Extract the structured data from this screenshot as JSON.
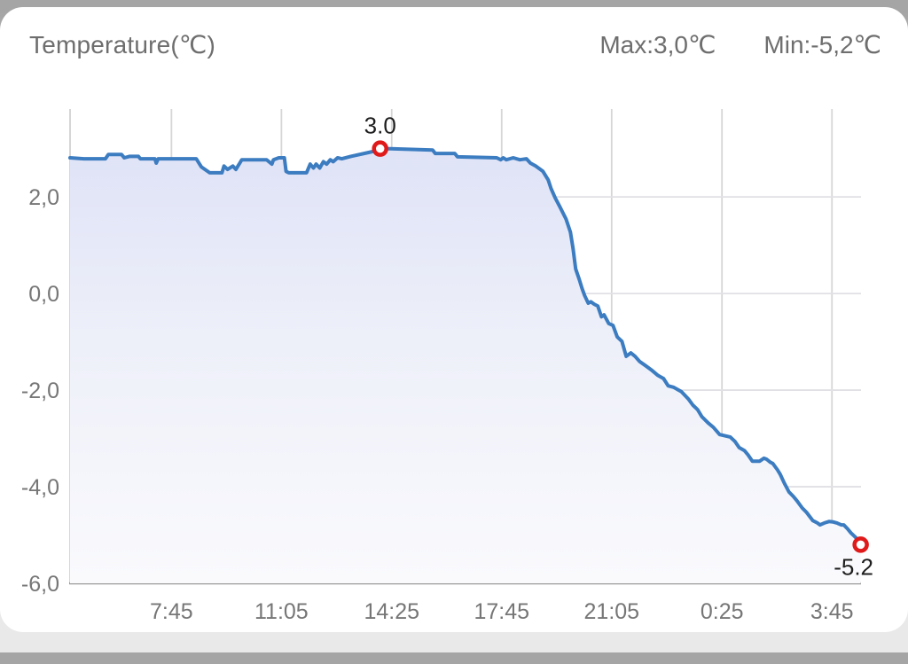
{
  "header": {
    "title": "Temperature(℃)",
    "max_label": "Max:3,0℃",
    "min_label": "Min:-5,2℃"
  },
  "chart_data": {
    "type": "area",
    "title": "Temperature(℃)",
    "xlabel": "",
    "ylabel": "Temperature (°C)",
    "grid": true,
    "legend": "none",
    "x_axis": {
      "range": [
        4.68,
        28.63
      ],
      "unit": "time of day (hours, wraps past midnight)",
      "ticks": [
        {
          "t": 7.75,
          "label": "7:45"
        },
        {
          "t": 11.08,
          "label": "11:05"
        },
        {
          "t": 14.42,
          "label": "14:25"
        },
        {
          "t": 17.75,
          "label": "17:45"
        },
        {
          "t": 21.08,
          "label": "21:05"
        },
        {
          "t": 24.42,
          "label": "0:25"
        },
        {
          "t": 27.75,
          "label": "3:45"
        }
      ]
    },
    "y_axis": {
      "range": [
        -6,
        3.82
      ],
      "ticks": [
        {
          "v": 2,
          "label": "2,0"
        },
        {
          "v": 0,
          "label": "0,0"
        },
        {
          "v": -2,
          "label": "-2,0"
        },
        {
          "v": -4,
          "label": "-4,0"
        },
        {
          "v": -6,
          "label": "-6,0"
        }
      ]
    },
    "series": {
      "name": "temperature",
      "points": [
        [
          4.68,
          2.81
        ],
        [
          5.1,
          2.79
        ],
        [
          5.75,
          2.79
        ],
        [
          5.84,
          2.88
        ],
        [
          6.24,
          2.88
        ],
        [
          6.32,
          2.81
        ],
        [
          6.48,
          2.84
        ],
        [
          6.75,
          2.84
        ],
        [
          6.81,
          2.79
        ],
        [
          7.25,
          2.79
        ],
        [
          7.29,
          2.7
        ],
        [
          7.35,
          2.79
        ],
        [
          8.5,
          2.79
        ],
        [
          8.66,
          2.62
        ],
        [
          8.91,
          2.5
        ],
        [
          9.28,
          2.5
        ],
        [
          9.34,
          2.64
        ],
        [
          9.45,
          2.57
        ],
        [
          9.61,
          2.64
        ],
        [
          9.7,
          2.57
        ],
        [
          9.82,
          2.7
        ],
        [
          9.88,
          2.77
        ],
        [
          10.63,
          2.77
        ],
        [
          10.79,
          2.68
        ],
        [
          10.84,
          2.77
        ],
        [
          11.0,
          2.81
        ],
        [
          11.17,
          2.81
        ],
        [
          11.22,
          2.53
        ],
        [
          11.3,
          2.5
        ],
        [
          11.84,
          2.5
        ],
        [
          11.95,
          2.68
        ],
        [
          12.05,
          2.6
        ],
        [
          12.13,
          2.68
        ],
        [
          12.24,
          2.6
        ],
        [
          12.35,
          2.73
        ],
        [
          12.45,
          2.68
        ],
        [
          12.56,
          2.77
        ],
        [
          12.65,
          2.73
        ],
        [
          12.78,
          2.81
        ],
        [
          12.91,
          2.79
        ],
        [
          13.18,
          2.84
        ],
        [
          13.72,
          2.92
        ],
        [
          13.9,
          2.95
        ],
        [
          14.07,
          3.0
        ],
        [
          14.39,
          3.0
        ],
        [
          15.66,
          2.97
        ],
        [
          15.74,
          2.9
        ],
        [
          16.33,
          2.9
        ],
        [
          16.41,
          2.83
        ],
        [
          17.6,
          2.81
        ],
        [
          17.72,
          2.77
        ],
        [
          17.8,
          2.81
        ],
        [
          17.89,
          2.77
        ],
        [
          18.1,
          2.81
        ],
        [
          18.3,
          2.77
        ],
        [
          18.5,
          2.79
        ],
        [
          18.62,
          2.7
        ],
        [
          18.78,
          2.64
        ],
        [
          19.0,
          2.53
        ],
        [
          19.16,
          2.35
        ],
        [
          19.24,
          2.18
        ],
        [
          19.37,
          1.98
        ],
        [
          19.51,
          1.8
        ],
        [
          19.7,
          1.54
        ],
        [
          19.83,
          1.27
        ],
        [
          19.91,
          0.94
        ],
        [
          19.99,
          0.51
        ],
        [
          20.1,
          0.29
        ],
        [
          20.18,
          0.11
        ],
        [
          20.26,
          -0.04
        ],
        [
          20.37,
          -0.2
        ],
        [
          20.45,
          -0.17
        ],
        [
          20.55,
          -0.22
        ],
        [
          20.66,
          -0.26
        ],
        [
          20.77,
          -0.48
        ],
        [
          20.85,
          -0.44
        ],
        [
          20.99,
          -0.62
        ],
        [
          21.12,
          -0.66
        ],
        [
          21.25,
          -0.9
        ],
        [
          21.39,
          -0.99
        ],
        [
          21.52,
          -1.3
        ],
        [
          21.66,
          -1.23
        ],
        [
          21.79,
          -1.3
        ],
        [
          21.93,
          -1.41
        ],
        [
          22.12,
          -1.5
        ],
        [
          22.28,
          -1.58
        ],
        [
          22.47,
          -1.69
        ],
        [
          22.65,
          -1.76
        ],
        [
          22.79,
          -1.91
        ],
        [
          22.95,
          -1.94
        ],
        [
          23.19,
          -2.03
        ],
        [
          23.41,
          -2.19
        ],
        [
          23.54,
          -2.31
        ],
        [
          23.68,
          -2.4
        ],
        [
          23.81,
          -2.55
        ],
        [
          24.0,
          -2.68
        ],
        [
          24.16,
          -2.77
        ],
        [
          24.35,
          -2.92
        ],
        [
          24.67,
          -2.97
        ],
        [
          24.81,
          -3.06
        ],
        [
          24.94,
          -3.19
        ],
        [
          25.1,
          -3.25
        ],
        [
          25.21,
          -3.34
        ],
        [
          25.34,
          -3.47
        ],
        [
          25.56,
          -3.47
        ],
        [
          25.69,
          -3.41
        ],
        [
          25.77,
          -3.43
        ],
        [
          25.88,
          -3.49
        ],
        [
          25.96,
          -3.52
        ],
        [
          26.1,
          -3.65
        ],
        [
          26.18,
          -3.74
        ],
        [
          26.31,
          -3.93
        ],
        [
          26.45,
          -4.11
        ],
        [
          26.58,
          -4.2
        ],
        [
          26.69,
          -4.29
        ],
        [
          26.85,
          -4.44
        ],
        [
          26.98,
          -4.53
        ],
        [
          27.17,
          -4.7
        ],
        [
          27.31,
          -4.75
        ],
        [
          27.39,
          -4.79
        ],
        [
          27.52,
          -4.75
        ],
        [
          27.66,
          -4.72
        ],
        [
          27.79,
          -4.73
        ],
        [
          27.9,
          -4.75
        ],
        [
          28.03,
          -4.79
        ],
        [
          28.11,
          -4.79
        ],
        [
          28.22,
          -4.87
        ],
        [
          28.33,
          -4.96
        ],
        [
          28.44,
          -5.03
        ],
        [
          28.54,
          -5.1
        ],
        [
          28.62,
          -5.2
        ]
      ]
    },
    "annotations": {
      "max": {
        "label": "3.0",
        "t": 14.07,
        "v": 3.0
      },
      "min": {
        "label": "-5.2",
        "t": 28.62,
        "v": -5.2
      }
    },
    "colors": {
      "line": "#3c7cc0",
      "fill_top": "#dce0f6",
      "fill_mid": "#eef0f9",
      "fill_bottom": "#fafafd",
      "marker_ring": "#e01a1a",
      "marker_center": "#ffffff",
      "grid_vertical": "#d6d6d6",
      "grid_horizontal": "#e1e1e5",
      "axis_line": "#9b9b9b",
      "tick_text": "#767676",
      "annotation_text": "#1e1e1e"
    }
  }
}
